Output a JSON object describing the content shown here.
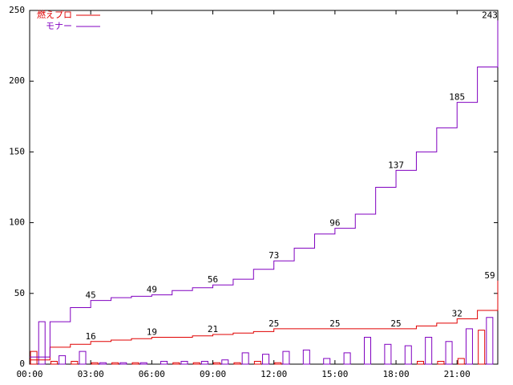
{
  "chart_data": {
    "type": "line",
    "step": true,
    "xlim": [
      0,
      23
    ],
    "ylim": [
      0,
      250
    ],
    "xticks": [
      {
        "value": 0,
        "label": "00:00"
      },
      {
        "value": 3,
        "label": "03:00"
      },
      {
        "value": 6,
        "label": "06:00"
      },
      {
        "value": 9,
        "label": "09:00"
      },
      {
        "value": 12,
        "label": "12:00"
      },
      {
        "value": 15,
        "label": "15:00"
      },
      {
        "value": 18,
        "label": "18:00"
      },
      {
        "value": 21,
        "label": "21:00"
      }
    ],
    "yticks": [
      0,
      50,
      100,
      150,
      200,
      250
    ],
    "x": [
      0,
      1,
      2,
      3,
      4,
      5,
      6,
      7,
      8,
      9,
      10,
      11,
      12,
      13,
      14,
      15,
      16,
      17,
      18,
      19,
      20,
      21,
      22,
      23
    ],
    "series": [
      {
        "name": "燃えプロ",
        "color": "#e00000",
        "values": [
          3,
          12,
          14,
          16,
          17,
          18,
          19,
          19,
          20,
          21,
          22,
          23,
          25,
          25,
          25,
          25,
          25,
          25,
          25,
          27,
          29,
          32,
          38,
          59
        ]
      },
      {
        "name": "モナー",
        "color": "#8000c0",
        "values": [
          5,
          30,
          40,
          45,
          47,
          48,
          49,
          52,
          54,
          56,
          60,
          67,
          73,
          82,
          92,
          96,
          106,
          125,
          137,
          150,
          167,
          185,
          210,
          243
        ]
      }
    ],
    "bars": [
      {
        "color": "#e00000",
        "x": [
          0.2,
          1.2,
          2.2,
          3.2,
          4.2,
          5.2,
          6.2,
          7.2,
          8.2,
          9.2,
          10.2,
          11.2,
          12.2,
          13.2,
          14.2,
          15.2,
          16.2,
          17.2,
          18.2,
          19.2,
          20.2,
          21.2,
          22.2
        ],
        "values": [
          9,
          2,
          2,
          1,
          1,
          1,
          0,
          1,
          1,
          1,
          1,
          2,
          1,
          0,
          0,
          0,
          0,
          0,
          0,
          2,
          2,
          4,
          24
        ]
      },
      {
        "color": "#8000c0",
        "x": [
          0.6,
          1.6,
          2.6,
          3.6,
          4.6,
          5.6,
          6.6,
          7.6,
          8.6,
          9.6,
          10.6,
          11.6,
          12.6,
          13.6,
          14.6,
          15.6,
          16.6,
          17.6,
          18.6,
          19.6,
          20.6,
          21.6,
          22.6
        ],
        "values": [
          30,
          6,
          9,
          1,
          1,
          1,
          2,
          2,
          2,
          3,
          8,
          7,
          9,
          10,
          4,
          8,
          19,
          14,
          13,
          19,
          16,
          25,
          33
        ]
      }
    ]
  }
}
